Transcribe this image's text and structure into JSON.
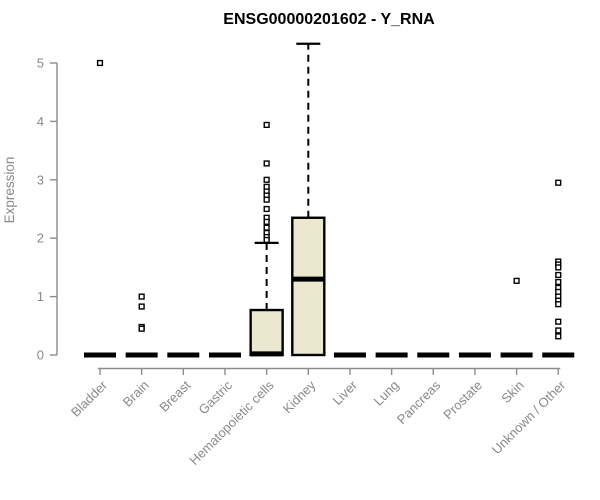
{
  "chart_data": {
    "type": "boxplot",
    "title": "ENSG00000201602 - Y_RNA",
    "ylabel": "Expression",
    "xlabel": "",
    "ylim": [
      0,
      5
    ],
    "yticks": [
      0,
      1,
      2,
      3,
      4,
      5
    ],
    "grid": false,
    "legend": "none",
    "x_label_rotation": 45,
    "categories": [
      "Bladder",
      "Brain",
      "Breast",
      "Gastric",
      "Hematopoietic cells",
      "Kidney",
      "Liver",
      "Lung",
      "Pancreas",
      "Prostate",
      "Skin",
      "Unknown / Other"
    ],
    "series": [
      {
        "category": "Bladder",
        "q1": 0,
        "median": 0,
        "q3": 0,
        "whisker_low": 0,
        "whisker_high": 0,
        "outliers": [
          5.0
        ]
      },
      {
        "category": "Brain",
        "q1": 0,
        "median": 0,
        "q3": 0,
        "whisker_low": 0,
        "whisker_high": 0,
        "outliers": [
          1.0,
          0.83,
          0.48,
          0.45
        ]
      },
      {
        "category": "Breast",
        "q1": 0,
        "median": 0,
        "q3": 0,
        "whisker_low": 0,
        "whisker_high": 0,
        "outliers": []
      },
      {
        "category": "Gastric",
        "q1": 0,
        "median": 0,
        "q3": 0,
        "whisker_low": 0,
        "whisker_high": 0,
        "outliers": []
      },
      {
        "category": "Hematopoietic cells",
        "q1": 0,
        "median": 0.02,
        "q3": 0.77,
        "whisker_low": 0,
        "whisker_high": 1.92,
        "outliers": [
          3.94,
          3.28,
          3.0,
          2.88,
          2.8,
          2.73,
          2.66,
          2.5,
          2.35,
          2.28,
          2.18,
          2.09,
          2.02,
          1.97
        ]
      },
      {
        "category": "Kidney",
        "q1": 0,
        "median": 1.3,
        "q3": 2.35,
        "whisker_low": 0,
        "whisker_high": 5.33,
        "outliers": []
      },
      {
        "category": "Liver",
        "q1": 0,
        "median": 0,
        "q3": 0,
        "whisker_low": 0,
        "whisker_high": 0,
        "outliers": []
      },
      {
        "category": "Lung",
        "q1": 0,
        "median": 0,
        "q3": 0,
        "whisker_low": 0,
        "whisker_high": 0,
        "outliers": []
      },
      {
        "category": "Pancreas",
        "q1": 0,
        "median": 0,
        "q3": 0,
        "whisker_low": 0,
        "whisker_high": 0,
        "outliers": []
      },
      {
        "category": "Prostate",
        "q1": 0,
        "median": 0,
        "q3": 0,
        "whisker_low": 0,
        "whisker_high": 0,
        "outliers": []
      },
      {
        "category": "Skin",
        "q1": 0,
        "median": 0,
        "q3": 0,
        "whisker_low": 0,
        "whisker_high": 0,
        "outliers": [
          1.27
        ]
      },
      {
        "category": "Unknown / Other",
        "q1": 0,
        "median": 0,
        "q3": 0,
        "whisker_low": 0,
        "whisker_high": 0,
        "outliers": [
          2.95,
          1.6,
          1.55,
          1.5,
          1.37,
          1.25,
          1.15,
          1.08,
          1.0,
          0.93,
          0.87,
          0.57,
          0.42,
          0.32
        ]
      }
    ],
    "style": {
      "background": "#FFFFFF",
      "box_fill": "#ECE8CF",
      "box_stroke": "#000000",
      "median_color": "#000000",
      "whisker_color": "#000000",
      "whisker_style": "dashed",
      "outlier_marker": "open-square",
      "outlier_color": "#000000",
      "axis_color": "#8C8C8C",
      "tick_label_color": "#898989",
      "title_color": "#000000"
    }
  }
}
